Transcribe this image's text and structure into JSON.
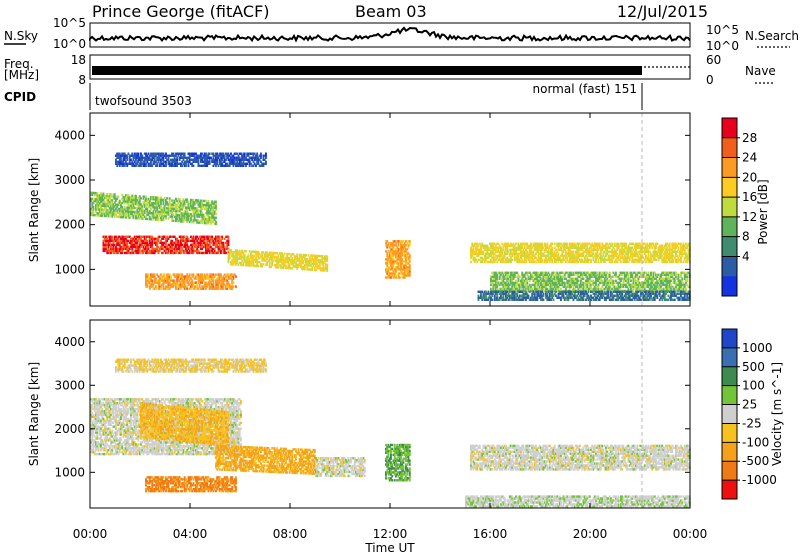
{
  "header": {
    "station": "Prince George (fitACF)",
    "beam": "Beam 03",
    "date": "12/Jul/2015"
  },
  "top_panels": {
    "nsky_label": "N.Sky",
    "nsearch_label": "N.Search",
    "noise_ticks_left": [
      "10^5",
      "10^0"
    ],
    "noise_ticks_right": [
      "10^5",
      "10^0"
    ],
    "freq_label_1": "Freq.",
    "freq_label_2": "[MHz]",
    "freq_ticks": [
      "18",
      "8"
    ],
    "nave_label": "Nave",
    "nave_ticks": [
      "60",
      "0"
    ],
    "cpid_label": "CPID",
    "cpid_1": "twofsound 3503",
    "cpid_2": "normal (fast) 151"
  },
  "axes": {
    "xlabel": "Time UT",
    "x_ticks": [
      "00:00",
      "04:00",
      "08:00",
      "12:00",
      "16:00",
      "20:00",
      "00:00"
    ],
    "ylabel": "Slant Range [km]",
    "y_ticks": [
      "4000",
      "3000",
      "2000",
      "1000"
    ]
  },
  "colorbars": {
    "power": {
      "label": "Power [dB]",
      "ticks": [
        "28",
        "24",
        "20",
        "16",
        "12",
        "8",
        "4"
      ],
      "colors": [
        "#e8001c",
        "#f25f1c",
        "#fb9b25",
        "#fccc22",
        "#bedc3e",
        "#5fb35a",
        "#3f8c70",
        "#2d5ca6",
        "#1433e0"
      ]
    },
    "velocity": {
      "label": "Velocity [m s^-1]",
      "ticks": [
        "1000",
        "500",
        "100",
        "25",
        "-25",
        "-100",
        "-500",
        "-1000"
      ],
      "colors": [
        "#2047c8",
        "#3a6fb1",
        "#3e8c4d",
        "#74c43a",
        "#cfcfcf",
        "#f6c21f",
        "#f5a21b",
        "#f07b15",
        "#ee0f0f"
      ]
    }
  },
  "chart_data": [
    {
      "type": "heatmap",
      "title": "Power",
      "xlabel": "Time UT",
      "ylabel": "Slant Range [km]",
      "xlim": [
        0,
        24
      ],
      "ylim": [
        180,
        4500
      ],
      "color_label": "Power [dB]",
      "color_range": [
        2,
        30
      ],
      "bands": [
        {
          "t0": 0.0,
          "t1": 5.0,
          "r0": 2200,
          "r1": 2700,
          "slope": -200,
          "val": 14
        },
        {
          "t0": 0.5,
          "t1": 5.5,
          "r0": 1350,
          "r1": 1750,
          "slope": 0,
          "val": 27
        },
        {
          "t0": 5.5,
          "t1": 9.5,
          "r0": 1100,
          "r1": 1450,
          "slope": -150,
          "val": 18
        },
        {
          "t0": 2.2,
          "t1": 5.8,
          "r0": 550,
          "r1": 900,
          "slope": 0,
          "val": 22
        },
        {
          "t0": 11.8,
          "t1": 12.8,
          "r0": 800,
          "r1": 1650,
          "slope": 0,
          "val": 22
        },
        {
          "t0": 15.2,
          "t1": 24.0,
          "r0": 1150,
          "r1": 1600,
          "slope": 0,
          "val": 18
        },
        {
          "t0": 16.0,
          "t1": 24.0,
          "r0": 500,
          "r1": 950,
          "slope": 0,
          "val": 14
        },
        {
          "t0": 1.0,
          "t1": 7.0,
          "r0": 3300,
          "r1": 3600,
          "slope": 0,
          "val": 6
        },
        {
          "t0": 15.5,
          "t1": 24.0,
          "r0": 300,
          "r1": 500,
          "slope": 0,
          "val": 8
        }
      ]
    },
    {
      "type": "heatmap",
      "title": "Velocity",
      "xlabel": "Time UT",
      "ylabel": "Slant Range [km]",
      "xlim": [
        0,
        24
      ],
      "ylim": [
        180,
        4500
      ],
      "color_label": "Velocity [m s^-1]",
      "color_range": [
        -1000,
        1000
      ],
      "bands": [
        {
          "t0": 0.0,
          "t1": 6.0,
          "r0": 1400,
          "r1": 2700,
          "slope": 0,
          "val": 0
        },
        {
          "t0": 2.0,
          "t1": 5.5,
          "r0": 1800,
          "r1": 2600,
          "slope": -200,
          "val": -300
        },
        {
          "t0": 5.0,
          "t1": 9.0,
          "r0": 1050,
          "r1": 1600,
          "slope": -100,
          "val": -400
        },
        {
          "t0": 2.2,
          "t1": 5.8,
          "r0": 550,
          "r1": 900,
          "slope": 0,
          "val": -600
        },
        {
          "t0": 9.0,
          "t1": 11.0,
          "r0": 900,
          "r1": 1350,
          "slope": 0,
          "val": 0
        },
        {
          "t0": 11.8,
          "t1": 12.8,
          "r0": 800,
          "r1": 1650,
          "slope": 0,
          "val": 300
        },
        {
          "t0": 15.2,
          "t1": 24.0,
          "r0": 1050,
          "r1": 1600,
          "slope": 0,
          "val": 0
        },
        {
          "t0": 15.0,
          "t1": 24.0,
          "r0": 200,
          "r1": 450,
          "slope": 0,
          "val": 60
        },
        {
          "t0": 1.0,
          "t1": 7.0,
          "r0": 3300,
          "r1": 3600,
          "slope": 0,
          "val": -150
        }
      ]
    }
  ]
}
